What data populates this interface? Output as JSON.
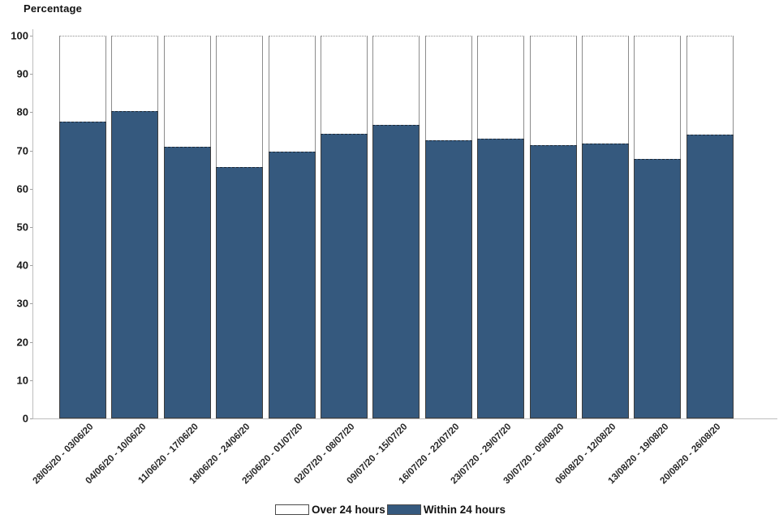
{
  "title": "Percentage",
  "legend": [
    {
      "label": "Over 24 hours",
      "color": "#FFFFFF"
    },
    {
      "label": "Within 24 hours",
      "color": "#35597E"
    }
  ],
  "chart_data": {
    "type": "bar",
    "stacked": true,
    "title": "Percentage",
    "xlabel": "",
    "ylabel": "Percentage",
    "ylim": [
      0,
      100
    ],
    "yticks": [
      0,
      10,
      20,
      30,
      40,
      50,
      60,
      70,
      80,
      90,
      100
    ],
    "grid": false,
    "legend_position": "bottom",
    "categories": [
      "28/05/20 - 03/06/20",
      "04/06/20 - 10/06/20",
      "11/06/20 - 17/06/20",
      "18/06/20 - 24/06/20",
      "25/06/20 - 01/07/20",
      "02/07/20 - 08/07/20",
      "09/07/20 - 15/07/20",
      "16/07/20 - 22/07/20",
      "23/07/20 - 29/07/20",
      "30/07/20 - 05/08/20",
      "06/08/20 - 12/08/20",
      "13/08/20 - 19/08/20",
      "20/08/20 - 26/08/20"
    ],
    "series": [
      {
        "name": "Within 24 hours",
        "color": "#35597E",
        "values": [
          77.6,
          80.4,
          71.0,
          65.6,
          69.6,
          74.4,
          76.7,
          72.6,
          73.0,
          71.5,
          71.8,
          67.8,
          74.2
        ]
      },
      {
        "name": "Over 24 hours",
        "color": "#FFFFFF",
        "values": [
          22.4,
          19.6,
          29.0,
          34.4,
          30.4,
          25.6,
          23.3,
          27.4,
          27.0,
          28.5,
          28.2,
          32.2,
          25.8
        ]
      }
    ]
  }
}
